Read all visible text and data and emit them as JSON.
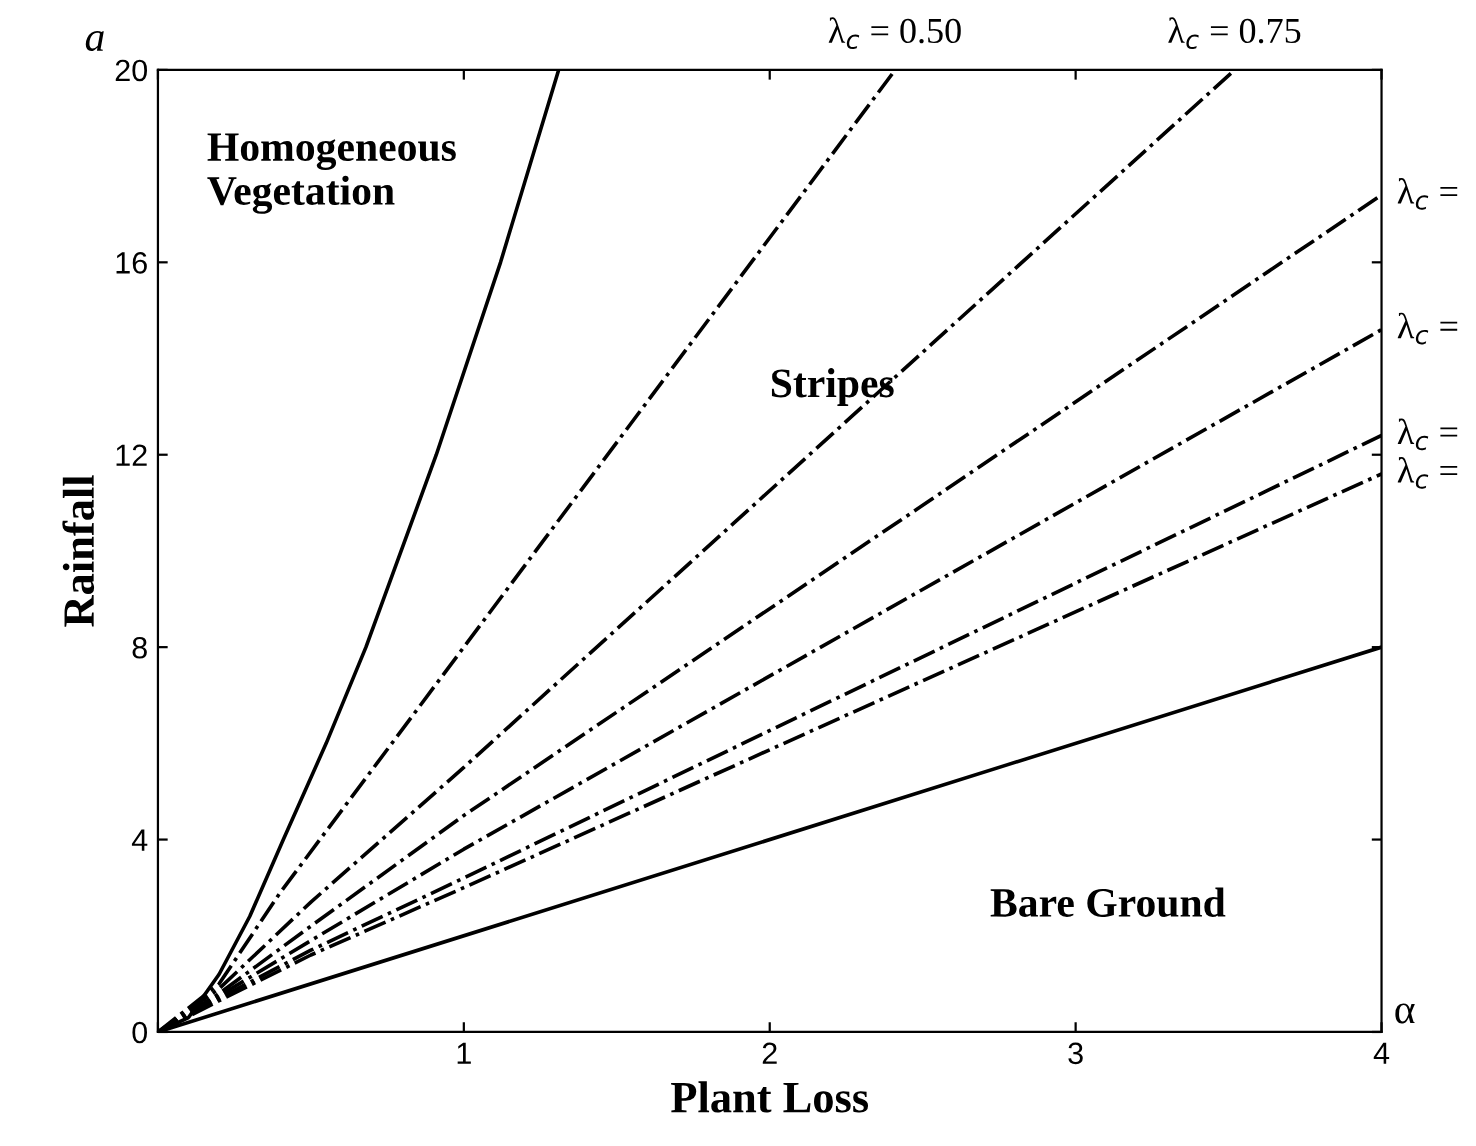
{
  "chart_data": {
    "type": "line",
    "xlabel": "Plant Loss",
    "ylabel": "Rainfall",
    "xlim": [
      0,
      4
    ],
    "ylim": [
      0,
      20
    ],
    "xticks": [
      {
        "value": 0,
        "label": null
      },
      1,
      2,
      3,
      4
    ],
    "yticks": [
      0,
      4,
      8,
      12,
      16,
      20
    ],
    "grid": false,
    "legend": false,
    "marker": "none",
    "annotations": [
      "a",
      "α",
      "Homogeneous\nVegetation",
      "Stripes",
      "Bare Ground",
      {
        "text": "λ$_{c}$ = 0.50",
        "x": 2.41,
        "y": 20
      },
      {
        "text": "λ$_{c}$ = 0.75",
        "x": 3.52,
        "y": 20
      },
      {
        "text": "λ$_{c}$ =",
        "x": 4,
        "y": 17.4
      },
      {
        "text": "λ$_{c}$ =",
        "x": 4,
        "y": 14.6
      },
      {
        "text": "λ$_{c}$ =",
        "x": 4,
        "y": 12.4
      },
      {
        "text": "λ$_{c}$ =",
        "x": 4,
        "y": 11.6
      }
    ],
    "series": [
      {
        "color": "#000000",
        "line_style": "solid",
        "x": [
          0,
          0.1,
          0.2,
          0.3,
          0.41,
          0.55,
          0.68,
          0.91,
          1.12,
          1.31
        ],
        "values": [
          0,
          0.3,
          1.2,
          2.4,
          4,
          6,
          8,
          12,
          16,
          20
        ]
      },
      {
        "color": "#000000",
        "line_style": "dashdot",
        "x": [
          0,
          0.2,
          0.4,
          1,
          2.41
        ],
        "values": [
          0,
          1.0,
          2.9,
          8.0,
          20
        ]
      },
      {
        "color": "#000000",
        "line_style": "dashdot",
        "x": [
          0,
          0.2,
          0.5,
          1,
          3.52
        ],
        "values": [
          0,
          0.9,
          2.7,
          5.5,
          20
        ]
      },
      {
        "color": "#000000",
        "line_style": "dashdot",
        "x": [
          0,
          0.2,
          0.5,
          1,
          4
        ],
        "values": [
          0,
          0.8,
          2.2,
          4.5,
          17.4
        ]
      },
      {
        "color": "#000000",
        "line_style": "dashdot",
        "x": [
          0,
          0.2,
          0.5,
          1,
          4
        ],
        "values": [
          0,
          0.75,
          1.9,
          3.8,
          14.6
        ]
      },
      {
        "color": "#000000",
        "line_style": "dashdot",
        "x": [
          0,
          0.2,
          0.5,
          1,
          4
        ],
        "values": [
          0,
          0.7,
          1.7,
          3.2,
          12.4
        ]
      },
      {
        "color": "#000000",
        "line_style": "dashdot",
        "x": [
          0,
          0.2,
          0.5,
          1,
          4
        ],
        "values": [
          0,
          0.65,
          1.6,
          3.0,
          11.6
        ]
      },
      {
        "color": "#000000",
        "line_style": "solid",
        "x": [
          0,
          4
        ],
        "values": [
          0,
          8
        ]
      }
    ]
  }
}
